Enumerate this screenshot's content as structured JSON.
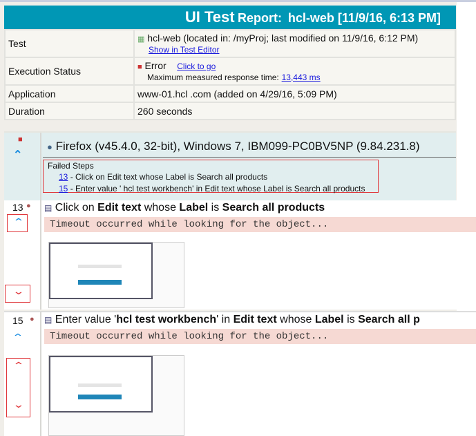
{
  "header": {
    "title_part1": "UI Test",
    "title_part2": "Report:",
    "title_part3": "hcl-web [11/9/16, 6:13 PM]"
  },
  "info": [
    {
      "key": "Test",
      "value": "hcl-web (located in: /myProj; last modified on 11/9/16, 6:12 PM)",
      "link": "Show in Test Editor",
      "icon": "test-icon"
    },
    {
      "key": "Execution Status",
      "value": "Error",
      "link": "Click to go",
      "sub_label": "Maximum measured response time:",
      "sub_link": "13,443 ms",
      "icon": "error-icon"
    },
    {
      "key": "Application",
      "value": "www-01.hcl .com (added on 4/29/16, 5:09 PM)"
    },
    {
      "key": "Duration",
      "value": "260 seconds"
    }
  ],
  "browser": {
    "label": "Firefox (v45.4.0, 32-bit), Windows 7, IBM099-PC0BV5NP (9.84.231.8)",
    "failed_title": "Failed Steps",
    "failed_steps": [
      {
        "num": "13",
        "text": " - Click on Edit text whose Label is Search all products"
      },
      {
        "num": "15",
        "text": " - Enter value ' hcl test workbench' in Edit text whose Label is Search all products"
      }
    ]
  },
  "steps": [
    {
      "num": "13",
      "parts": [
        "Click on ",
        "Edit text",
        " whose ",
        "Label",
        " is ",
        "Search all products"
      ],
      "error": "Timeout occurred while looking for the object..."
    },
    {
      "num": "15",
      "parts": [
        "Enter value '",
        "hcl test workbench",
        "' in ",
        "Edit text",
        " whose ",
        "Label",
        " is ",
        "Search all p"
      ],
      "error": "Timeout occurred while looking for the object..."
    }
  ],
  "colors": {
    "header": "#0097b5",
    "error_bg": "#f6d9d3",
    "highlight_box": "#e0373b",
    "nav_arrow": "#1a8de0"
  }
}
